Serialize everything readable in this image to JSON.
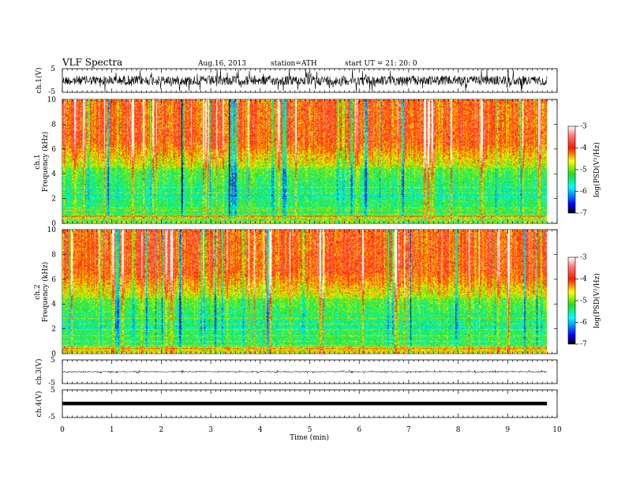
{
  "header": {
    "title": "VLF Spectra",
    "date": "Aug.16, 2013",
    "station": "station=ATH",
    "start": "start  UT =  21: 20: 0"
  },
  "chart_data": [
    {
      "type": "line",
      "ylabel": "ch.1(V)",
      "ylim": [
        -5,
        5
      ],
      "ytick_labels": [
        "5",
        "-5"
      ],
      "signal": "noisy broadband waveform"
    },
    {
      "type": "heatmap",
      "ylabel": "ch.1\nFrequency (kHz)",
      "ylim": [
        0,
        10
      ],
      "ytick_labels": [
        "0",
        "2",
        "4",
        "6",
        "8",
        "10"
      ],
      "colorbar": {
        "label": "log(PSD(V²/Hz)",
        "range": [
          -7,
          -3
        ],
        "tick_labels": [
          "-3",
          "-4",
          "-5",
          "-6",
          "-7"
        ]
      }
    },
    {
      "type": "heatmap",
      "ylabel": "ch.2\nFrequency (kHz)",
      "ylim": [
        0,
        10
      ],
      "ytick_labels": [
        "0",
        "2",
        "4",
        "6",
        "8",
        "10"
      ],
      "colorbar": {
        "label": "log(PSD(V²/Hz)",
        "range": [
          -7,
          -3
        ],
        "tick_labels": [
          "-3",
          "-4",
          "-5",
          "-6",
          "-7"
        ]
      }
    },
    {
      "type": "line",
      "ylabel": "ch.3(V)",
      "ylim": [
        -5,
        5
      ],
      "ytick_labels": [
        "5",
        "-5"
      ],
      "signal": "near-zero flat trace"
    },
    {
      "type": "line",
      "ylabel": "ch.4(V)",
      "ylim": [
        -5,
        5
      ],
      "ytick_labels": [
        "5",
        "-5"
      ],
      "signal": "thick flat trace at 0"
    }
  ],
  "xaxis": {
    "label": "Time (min)",
    "xlim": [
      0,
      10
    ],
    "data_end": 9.8,
    "tick_labels": [
      "0",
      "1",
      "2",
      "3",
      "4",
      "5",
      "6",
      "7",
      "8",
      "9",
      "10"
    ]
  },
  "colors": {
    "high": "#ff1a00",
    "mid_high": "#ffff00",
    "mid": "#22dd22",
    "mid_low": "#00ffff",
    "low": "#0000ff",
    "lowest": "#000000",
    "peak": "#ffffff"
  }
}
